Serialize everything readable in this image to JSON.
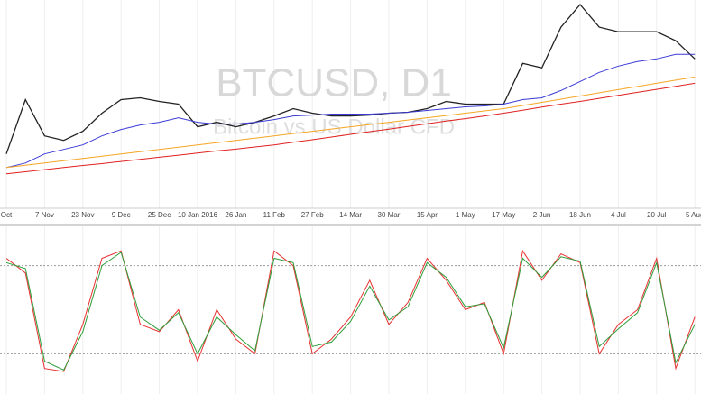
{
  "chart_data": [
    {
      "type": "line",
      "title": "BTCUSD, D1",
      "subtitle": "Bitcoin vs US Dollar CFD",
      "grid": true,
      "categories": [
        "Oct",
        null,
        "7 Nov",
        null,
        "23 Nov",
        null,
        "9 Dec",
        null,
        "25 Dec",
        null,
        "10 Jan 2016",
        null,
        "26 Jan",
        null,
        "11 Feb",
        null,
        "27 Feb",
        null,
        "14 Mar",
        null,
        "30 Mar",
        null,
        "15 Apr",
        null,
        "1 May",
        null,
        "17 May",
        null,
        "2 Jun",
        null,
        "18 Jun",
        null,
        "4 Jul",
        null,
        "20 Jul",
        null,
        "5 Aug"
      ],
      "ylim": [
        80,
        770
      ],
      "series": [
        {
          "color": "#222222",
          "values": [
            260,
            440,
            320,
            305,
            335,
            395,
            440,
            446,
            434,
            425,
            350,
            365,
            350,
            365,
            386,
            410,
            395,
            386,
            386,
            389,
            395,
            398,
            410,
            434,
            425,
            425,
            425,
            560,
            545,
            680,
            755,
            680,
            665,
            665,
            665,
            635,
            575
          ]
        },
        {
          "color": "#3b3bd6",
          "values": [
            215,
            230,
            260,
            275,
            290,
            320,
            341,
            356,
            365,
            380,
            365,
            359,
            359,
            365,
            374,
            386,
            389,
            392,
            392,
            392,
            395,
            398,
            404,
            410,
            416,
            419,
            425,
            440,
            446,
            470,
            500,
            530,
            551,
            566,
            575,
            590,
            590
          ]
        },
        {
          "color": "#f5a623",
          "values": [
            215,
            222.5,
            230,
            237.5,
            245,
            252.5,
            260,
            267.5,
            275,
            282.5,
            290,
            297.5,
            305,
            312.5,
            320,
            327.5,
            335,
            342.5,
            350,
            357.5,
            365,
            372.5,
            380,
            387.5,
            395,
            402.5,
            410,
            420.5,
            431,
            441.5,
            452,
            462.5,
            473,
            483.5,
            494,
            504.5,
            515
          ]
        },
        {
          "color": "#e02020",
          "values": [
            194,
            201,
            208,
            215,
            222,
            228,
            235,
            242,
            249,
            256,
            263,
            270,
            276,
            283,
            290,
            299,
            307,
            316,
            325,
            334,
            342,
            351,
            360,
            369,
            377,
            386,
            395,
            405,
            415,
            425,
            434,
            444,
            454,
            464,
            474,
            484,
            494
          ]
        }
      ]
    },
    {
      "type": "line",
      "ylim": [
        0,
        100
      ],
      "levels": [
        20,
        80
      ],
      "series": [
        {
          "color": "#e83030",
          "values": [
            85,
            75,
            10,
            8,
            40,
            85,
            90,
            40,
            35,
            50,
            15,
            50,
            30,
            20,
            90,
            80,
            20,
            30,
            45,
            70,
            40,
            55,
            85,
            70,
            50,
            55,
            20,
            90,
            70,
            88,
            82,
            20,
            40,
            50,
            85,
            10,
            45
          ]
        },
        {
          "color": "#2e9e3a",
          "values": [
            82,
            78,
            15,
            9,
            35,
            80,
            89,
            45,
            36,
            48,
            20,
            45,
            33,
            22,
            85,
            82,
            25,
            28,
            42,
            66,
            43,
            52,
            82,
            72,
            52,
            54,
            24,
            85,
            72,
            86,
            83,
            25,
            37,
            48,
            82,
            14,
            40
          ]
        }
      ]
    }
  ]
}
